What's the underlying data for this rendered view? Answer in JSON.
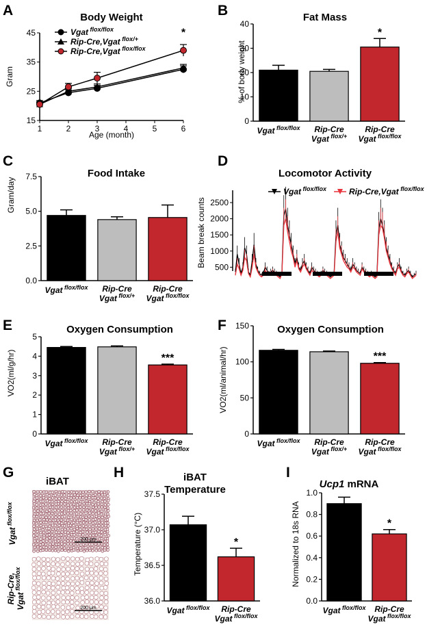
{
  "colors": {
    "wt": "#000000",
    "het": "#bdbdbd",
    "ko": "#c1272d",
    "loco_ko": "#e8343c"
  },
  "panels": {
    "A": "A",
    "B": "B",
    "C": "C",
    "D": "D",
    "E": "E",
    "F": "F",
    "G": "G",
    "H": "H",
    "I": "I"
  },
  "chart_data": [
    {
      "panel": "A",
      "type": "line",
      "title": "Body Weight",
      "xlabel": "Age (month)",
      "ylabel": "Gram",
      "x": [
        1,
        2,
        3,
        6
      ],
      "xlim": [
        1,
        6
      ],
      "xticks": [
        "1",
        "2",
        "3",
        "4",
        "5",
        "6"
      ],
      "ylim": [
        15,
        45
      ],
      "yticks": [
        "15",
        "25",
        "35",
        "45"
      ],
      "series": [
        {
          "name": "Vgat flox/flox",
          "values": [
            21,
            24.5,
            26,
            32.5
          ],
          "err": [
            0.8,
            1,
            1,
            1.2
          ]
        },
        {
          "name": "Rip-Cre,Vgat flox/+",
          "values": [
            20.5,
            25,
            26.5,
            33
          ],
          "err": [
            0.8,
            1,
            1,
            1.2
          ]
        },
        {
          "name": "Rip-Cre,Vgat flox/flox",
          "values": [
            20.5,
            26.5,
            29.5,
            39
          ],
          "err": [
            0.8,
            1.2,
            2,
            2
          ]
        }
      ],
      "legend": [
        "Vgat",
        "Rip-Cre,Vgat",
        "Rip-Cre,Vgat"
      ],
      "legend_sup": [
        "flox/flox",
        "flox/+",
        "flox/flox"
      ],
      "annotation": "*"
    },
    {
      "panel": "B",
      "type": "bar",
      "title": "Fat Mass",
      "ylabel": "% of body weight",
      "ylim": [
        0,
        40
      ],
      "yticks": [
        "0",
        "10",
        "20",
        "30",
        "40"
      ],
      "values": [
        21,
        20.5,
        30.5
      ],
      "err": [
        2,
        0.8,
        3.5
      ],
      "labels": [
        [
          "Vgat",
          "flox/flox"
        ],
        [
          "Rip-Cre",
          "Vgat",
          "flox/+"
        ],
        [
          "Rip-Cre",
          "Vgat",
          "flox/flox"
        ]
      ],
      "stars": [
        "",
        "",
        "*"
      ]
    },
    {
      "panel": "C",
      "type": "bar",
      "title": "Food Intake",
      "ylabel": "Gram/day",
      "ylim": [
        0,
        7.5
      ],
      "yticks": [
        "0.0",
        "2.5",
        "5.0",
        "7.5"
      ],
      "values": [
        4.7,
        4.4,
        4.55
      ],
      "err": [
        0.4,
        0.2,
        0.9
      ],
      "labels": [
        [
          "Vgat",
          "flox/flox"
        ],
        [
          "Rip-Cre",
          "Vgat",
          "flox/+"
        ],
        [
          "Rip-Cre",
          "Vgat",
          "flox/flox"
        ]
      ],
      "stars": [
        "",
        "",
        ""
      ]
    },
    {
      "panel": "D",
      "type": "line",
      "title": "Locomotor Activity",
      "ylabel": "Beam break counts",
      "ylim": [
        0,
        2500
      ],
      "yticks": [
        "500",
        "1000",
        "1500",
        "2000",
        "2500"
      ],
      "series": [
        {
          "name": "Vgat flox/flox",
          "values": [
            350,
            900,
            600,
            300,
            500,
            1100,
            900,
            350,
            250,
            700,
            1200,
            600,
            400,
            300,
            250,
            300,
            500,
            400,
            300,
            350,
            400,
            350,
            300,
            250,
            200,
            350,
            2100,
            2300,
            1800,
            1500,
            1200,
            900,
            600,
            800,
            500,
            400,
            600,
            700,
            500,
            400,
            300,
            500,
            400,
            350,
            300,
            250,
            300,
            400,
            350,
            300,
            250,
            200,
            250,
            300,
            1500,
            1800,
            1200,
            1000,
            800,
            700,
            600,
            500,
            400,
            600,
            500,
            400,
            350,
            300,
            500,
            400,
            350,
            300,
            250,
            300,
            250,
            200,
            250,
            1700,
            2000,
            1800,
            1500,
            1100,
            900,
            700,
            500,
            400,
            300,
            500,
            600,
            400,
            300,
            250,
            350,
            400,
            300,
            200,
            250,
            300
          ]
        },
        {
          "name": "Rip-Cre,Vgat flox/flox",
          "values": [
            250,
            600,
            450,
            250,
            400,
            800,
            700,
            300,
            200,
            500,
            900,
            500,
            350,
            250,
            200,
            250,
            400,
            300,
            250,
            300,
            350,
            300,
            250,
            200,
            150,
            300,
            1800,
            2000,
            1600,
            1300,
            1000,
            800,
            500,
            700,
            450,
            350,
            500,
            600,
            450,
            350,
            250,
            400,
            350,
            300,
            250,
            200,
            250,
            350,
            300,
            250,
            200,
            150,
            200,
            250,
            1300,
            1600,
            1100,
            900,
            700,
            600,
            500,
            450,
            350,
            500,
            450,
            350,
            300,
            250,
            450,
            350,
            300,
            250,
            200,
            250,
            200,
            150,
            200,
            1500,
            1800,
            1700,
            1400,
            1000,
            800,
            600,
            450,
            350,
            250,
            450,
            500,
            350,
            250,
            200,
            300,
            350,
            250,
            150,
            200,
            250
          ]
        }
      ],
      "legend": [
        "Vgat",
        "Rip-Cre,Vgat"
      ],
      "legend_sup": [
        "flox/flox",
        "flox/flox"
      ]
    },
    {
      "panel": "E",
      "type": "bar",
      "title": "Oxygen Consumption",
      "ylabel": "VO2(ml/g/hr)",
      "ylim": [
        0,
        5
      ],
      "yticks": [
        "0",
        "1",
        "2",
        "3",
        "4",
        "5"
      ],
      "values": [
        4.45,
        4.48,
        3.55
      ],
      "err": [
        0.05,
        0.05,
        0.04
      ],
      "labels": [
        [
          "Vgat",
          "flox/flox"
        ],
        [
          "Rip-Cre",
          "Vgat",
          "flox/+"
        ],
        [
          "Rip-Cre",
          "Vgat",
          "flox/flox"
        ]
      ],
      "stars": [
        "",
        "",
        "***"
      ]
    },
    {
      "panel": "F",
      "type": "bar",
      "title": "Oxygen Consumption",
      "ylabel": "VO2(ml/animal/hr)",
      "ylim": [
        0,
        150
      ],
      "yticks": [
        "0",
        "50",
        "100",
        "150"
      ],
      "values": [
        116,
        114,
        98
      ],
      "err": [
        1.2,
        1,
        1
      ],
      "labels": [
        [
          "Vgat",
          "flox/flox"
        ],
        [
          "Rip-Cre",
          "Vgat",
          "flox/+"
        ],
        [
          "Rip-Cre",
          "Vgat",
          "flox/flox"
        ]
      ],
      "stars": [
        "",
        "",
        "***"
      ]
    },
    {
      "panel": "H",
      "type": "bar",
      "title": "iBAT",
      "title2": "Temperature",
      "ylabel": "Temperature (°C)",
      "ylim": [
        36,
        37.5
      ],
      "yticks": [
        "36.0",
        "36.5",
        "37.0",
        "37.5"
      ],
      "values": [
        37.07,
        36.62
      ],
      "err": [
        0.12,
        0.12
      ],
      "labels": [
        [
          "Vgat",
          "flox/flox"
        ],
        [
          "Rip-Cre",
          "Vgat",
          "flox/flox"
        ]
      ],
      "stars": [
        "",
        "*"
      ]
    },
    {
      "panel": "I",
      "type": "bar",
      "title": "Ucp1",
      "title_rest": " mRNA",
      "ylabel": "Normalized to 18s RNA",
      "ylim": [
        0,
        1
      ],
      "yticks": [
        "0.0",
        "0.2",
        "0.4",
        "0.6",
        "0.8",
        "1.0"
      ],
      "values": [
        0.9,
        0.62
      ],
      "err": [
        0.06,
        0.04
      ],
      "labels": [
        [
          "Vgat",
          "flox/flox"
        ],
        [
          "Rip-Cre",
          "Vgat",
          "flox/flox"
        ]
      ],
      "stars": [
        "",
        "*"
      ]
    }
  ],
  "histology": {
    "title": "iBAT",
    "row_labels": [
      [
        "Vgat",
        "flox/flox"
      ],
      [
        "Rip-Cre,",
        "Vgat",
        "flox/flox"
      ]
    ],
    "scale": "200 μm"
  }
}
